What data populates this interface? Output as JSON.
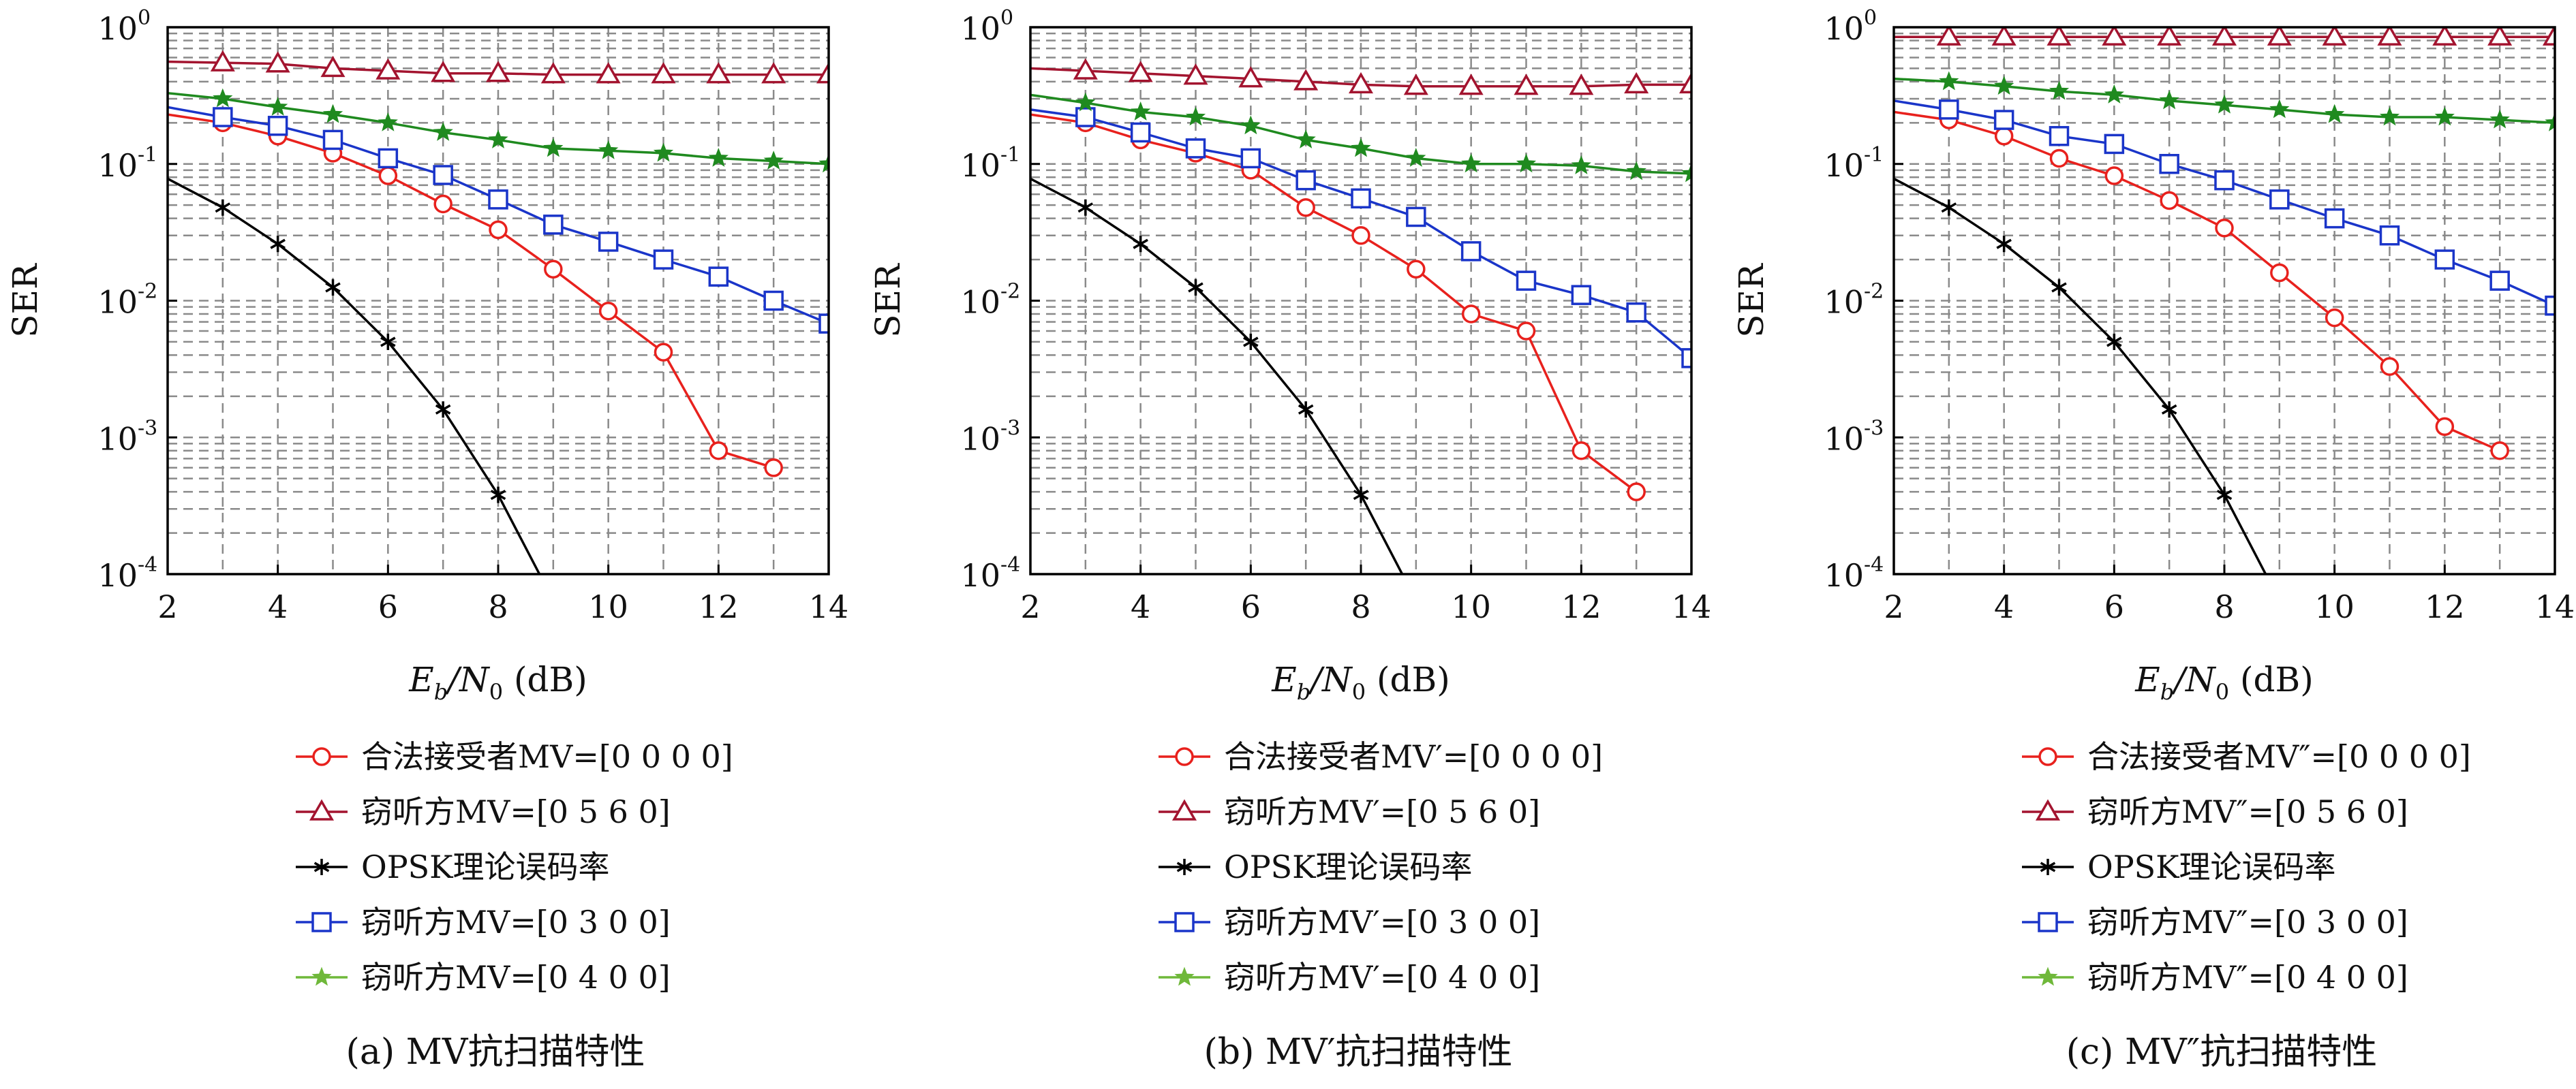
{
  "chart_data": [
    {
      "type": "line",
      "ylabel": "SER",
      "xlabel": {
        "main": "E",
        "sub1": "b",
        "slash": "/N",
        "sub2": "0",
        "unit": " (dB)"
      },
      "xlim": [
        2,
        14
      ],
      "ylim": [
        0.0001,
        1
      ],
      "y_scale": "log",
      "grid": true,
      "legend_position": "below",
      "x_ticks": [
        "2",
        "4",
        "6",
        "8",
        "10",
        "12",
        "14"
      ],
      "y_ticks": [
        {
          "base": "10",
          "exp": "0",
          "value": 1
        },
        {
          "base": "10",
          "exp": "-1",
          "value": 0.1
        },
        {
          "base": "10",
          "exp": "-2",
          "value": 0.01
        },
        {
          "base": "10",
          "exp": "-3",
          "value": 0.001
        },
        {
          "base": "10",
          "exp": "-4",
          "value": 0.0001
        }
      ],
      "caption": "(a) MV抗扫描特性",
      "series": [
        {
          "name": "合法接受者MV=[0 0 0 0]",
          "color": "#e8211d",
          "marker": "circle",
          "x": [
            2,
            3,
            4,
            5,
            6,
            7,
            8,
            9,
            10,
            11,
            12,
            13
          ],
          "y": [
            0.23,
            0.2,
            0.16,
            0.12,
            0.082,
            0.051,
            0.033,
            0.017,
            0.0084,
            0.0042,
            0.0008,
            0.0006
          ]
        },
        {
          "name": "窃听方MV=[0 5 6 0]",
          "color": "#a3142f",
          "marker": "triangle",
          "x": [
            2,
            3,
            4,
            5,
            6,
            7,
            8,
            9,
            10,
            11,
            12,
            13,
            14
          ],
          "y": [
            0.56,
            0.55,
            0.54,
            0.5,
            0.48,
            0.46,
            0.46,
            0.45,
            0.45,
            0.45,
            0.45,
            0.45,
            0.45
          ]
        },
        {
          "name": "OPSK理论误码率",
          "color": "#000000",
          "marker": "star6",
          "x": [
            2,
            3,
            4,
            5,
            6,
            7,
            8,
            8.75
          ],
          "y": [
            0.078,
            0.048,
            0.026,
            0.0125,
            0.005,
            0.0016,
            0.00038,
            0.0001
          ]
        },
        {
          "name": "窃听方MV=[0 3 0 0]",
          "color": "#1a35c9",
          "marker": "square",
          "x": [
            2,
            3,
            4,
            5,
            6,
            7,
            8,
            9,
            10,
            11,
            12,
            13,
            14
          ],
          "y": [
            0.26,
            0.22,
            0.19,
            0.15,
            0.11,
            0.083,
            0.055,
            0.036,
            0.027,
            0.02,
            0.015,
            0.01,
            0.0068
          ]
        },
        {
          "name": "窃听方MV=[0 4 0 0]",
          "color": "#1f8a1f",
          "marker": "star5",
          "legend_color": "#6fb83a",
          "x": [
            2,
            3,
            4,
            5,
            6,
            7,
            8,
            9,
            10,
            11,
            12,
            13,
            14
          ],
          "y": [
            0.33,
            0.3,
            0.26,
            0.23,
            0.2,
            0.17,
            0.15,
            0.13,
            0.125,
            0.12,
            0.11,
            0.105,
            0.1
          ]
        }
      ]
    },
    {
      "type": "line",
      "ylabel": "SER",
      "xlabel": {
        "main": "E",
        "sub1": "b",
        "slash": "/N",
        "sub2": "0",
        "unit": " (dB)"
      },
      "xlim": [
        2,
        14
      ],
      "ylim": [
        0.0001,
        1
      ],
      "y_scale": "log",
      "grid": true,
      "legend_position": "below",
      "x_ticks": [
        "2",
        "4",
        "6",
        "8",
        "10",
        "12",
        "14"
      ],
      "y_ticks": [
        {
          "base": "10",
          "exp": "0",
          "value": 1
        },
        {
          "base": "10",
          "exp": "-1",
          "value": 0.1
        },
        {
          "base": "10",
          "exp": "-2",
          "value": 0.01
        },
        {
          "base": "10",
          "exp": "-3",
          "value": 0.001
        },
        {
          "base": "10",
          "exp": "-4",
          "value": 0.0001
        }
      ],
      "caption": "(b) MV′抗扫描特性",
      "series": [
        {
          "name": "合法接受者MV′=[0 0 0 0]",
          "color": "#e8211d",
          "marker": "circle",
          "x": [
            2,
            3,
            4,
            5,
            6,
            7,
            8,
            9,
            10,
            11,
            12,
            13
          ],
          "y": [
            0.23,
            0.2,
            0.15,
            0.12,
            0.09,
            0.048,
            0.03,
            0.017,
            0.008,
            0.006,
            0.0008,
            0.0004
          ]
        },
        {
          "name": "窃听方MV′=[0 5 6 0]",
          "color": "#a3142f",
          "marker": "triangle",
          "x": [
            2,
            3,
            4,
            5,
            6,
            7,
            8,
            9,
            10,
            11,
            12,
            13,
            14
          ],
          "y": [
            0.5,
            0.48,
            0.46,
            0.44,
            0.42,
            0.4,
            0.38,
            0.37,
            0.37,
            0.37,
            0.37,
            0.38,
            0.38
          ]
        },
        {
          "name": "OPSK理论误码率",
          "color": "#000000",
          "marker": "star6",
          "x": [
            2,
            3,
            4,
            5,
            6,
            7,
            8,
            8.75
          ],
          "y": [
            0.078,
            0.048,
            0.026,
            0.0125,
            0.005,
            0.0016,
            0.00038,
            0.0001
          ]
        },
        {
          "name": "窃听方MV′=[0 3 0 0]",
          "color": "#1a35c9",
          "marker": "square",
          "x": [
            2,
            3,
            4,
            5,
            6,
            7,
            8,
            9,
            10,
            11,
            12,
            13,
            14
          ],
          "y": [
            0.25,
            0.22,
            0.17,
            0.13,
            0.11,
            0.076,
            0.056,
            0.041,
            0.023,
            0.014,
            0.011,
            0.0082,
            0.0038
          ]
        },
        {
          "name": "窃听方MV′=[0 4 0 0]",
          "color": "#1f8a1f",
          "marker": "star5",
          "legend_color": "#6fb83a",
          "x": [
            2,
            3,
            4,
            5,
            6,
            7,
            8,
            9,
            10,
            11,
            12,
            13,
            14
          ],
          "y": [
            0.32,
            0.28,
            0.24,
            0.22,
            0.19,
            0.15,
            0.13,
            0.11,
            0.1,
            0.1,
            0.097,
            0.088,
            0.085
          ]
        }
      ]
    },
    {
      "type": "line",
      "ylabel": "SER",
      "xlabel": {
        "main": "E",
        "sub1": "b",
        "slash": "/N",
        "sub2": "0",
        "unit": " (dB)"
      },
      "xlim": [
        2,
        14
      ],
      "ylim": [
        0.0001,
        1
      ],
      "y_scale": "log",
      "grid": true,
      "legend_position": "below",
      "x_ticks": [
        "2",
        "4",
        "6",
        "8",
        "10",
        "12",
        "14"
      ],
      "y_ticks": [
        {
          "base": "10",
          "exp": "0",
          "value": 1
        },
        {
          "base": "10",
          "exp": "-1",
          "value": 0.1
        },
        {
          "base": "10",
          "exp": "-2",
          "value": 0.01
        },
        {
          "base": "10",
          "exp": "-3",
          "value": 0.001
        },
        {
          "base": "10",
          "exp": "-4",
          "value": 0.0001
        }
      ],
      "caption": "(c) MV″抗扫描特性",
      "series": [
        {
          "name": "合法接受者MV″=[0 0 0 0]",
          "color": "#e8211d",
          "marker": "circle",
          "x": [
            2,
            3,
            4,
            5,
            6,
            7,
            8,
            9,
            10,
            11,
            12,
            13
          ],
          "y": [
            0.24,
            0.21,
            0.16,
            0.11,
            0.082,
            0.054,
            0.034,
            0.016,
            0.0075,
            0.0033,
            0.0012,
            0.0008
          ]
        },
        {
          "name": "窃听方MV″=[0 5 6 0]",
          "color": "#a3142f",
          "marker": "triangle",
          "x": [
            2,
            3,
            4,
            5,
            6,
            7,
            8,
            9,
            10,
            11,
            12,
            13,
            14
          ],
          "y": [
            0.85,
            0.85,
            0.85,
            0.85,
            0.85,
            0.85,
            0.85,
            0.85,
            0.85,
            0.85,
            0.85,
            0.85,
            0.85
          ]
        },
        {
          "name": "OPSK理论误码率",
          "color": "#000000",
          "marker": "star6",
          "x": [
            2,
            3,
            4,
            5,
            6,
            7,
            8,
            8.75
          ],
          "y": [
            0.078,
            0.048,
            0.026,
            0.0125,
            0.005,
            0.0016,
            0.00038,
            0.0001
          ]
        },
        {
          "name": "窃听方MV″=[0 3 0 0]",
          "color": "#1a35c9",
          "marker": "square",
          "x": [
            2,
            3,
            4,
            5,
            6,
            7,
            8,
            9,
            10,
            11,
            12,
            13,
            14
          ],
          "y": [
            0.29,
            0.25,
            0.21,
            0.16,
            0.14,
            0.1,
            0.076,
            0.055,
            0.04,
            0.03,
            0.02,
            0.014,
            0.0092
          ]
        },
        {
          "name": "窃听方MV″=[0 4 0 0]",
          "color": "#1f8a1f",
          "marker": "star5",
          "legend_color": "#6fb83a",
          "x": [
            2,
            3,
            4,
            5,
            6,
            7,
            8,
            9,
            10,
            11,
            12,
            13,
            14
          ],
          "y": [
            0.42,
            0.4,
            0.37,
            0.34,
            0.32,
            0.29,
            0.27,
            0.25,
            0.23,
            0.22,
            0.22,
            0.21,
            0.2
          ]
        }
      ]
    }
  ]
}
